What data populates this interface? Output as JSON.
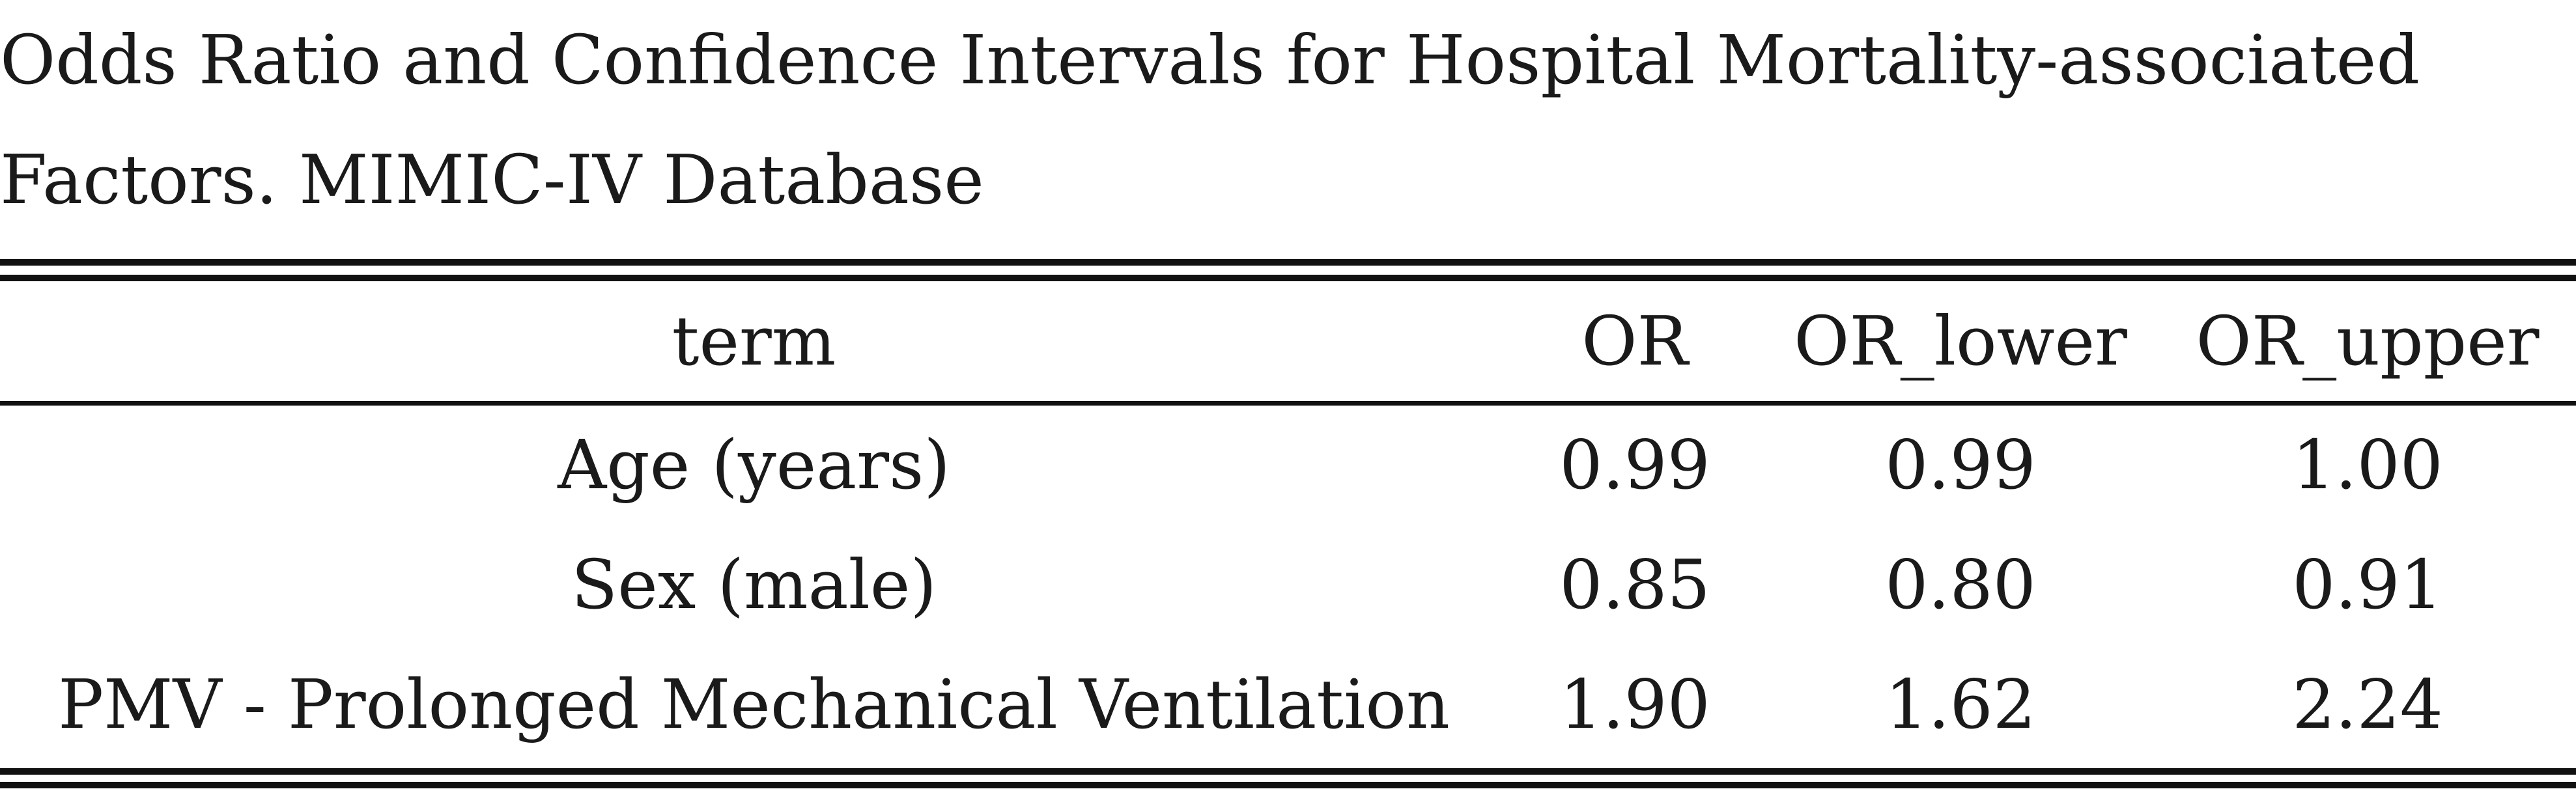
{
  "caption": "Odds Ratio and Confidence Intervals for Hospital Mortality-associated Factors. MIMIC-IV Database",
  "table": {
    "headers": [
      "term",
      "OR",
      "OR_lower",
      "OR_upper"
    ],
    "rows": [
      [
        "Age (years)",
        "0.99",
        "0.99",
        "1.00"
      ],
      [
        "Sex (male)",
        "0.85",
        "0.80",
        "0.91"
      ],
      [
        "PMV - Prolonged Mechanical Ventilation",
        "1.90",
        "1.62",
        "2.24"
      ]
    ]
  }
}
